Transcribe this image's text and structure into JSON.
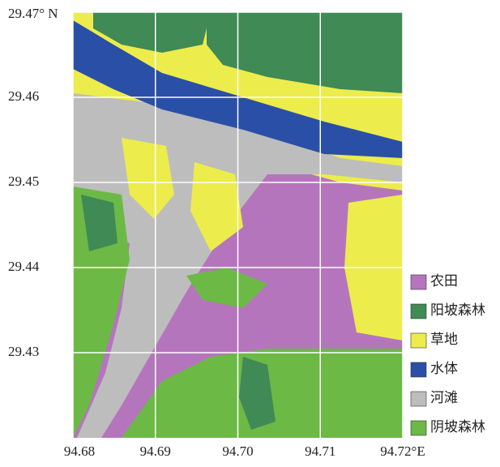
{
  "chart_data": {
    "type": "map",
    "xlim": [
      94.68,
      94.72
    ],
    "ylim": [
      29.42,
      29.47
    ],
    "xticks": [
      94.68,
      94.69,
      94.7,
      94.71,
      {
        "value": 94.72,
        "label": "94.72°E"
      }
    ],
    "yticks": [
      {
        "value": 29.47,
        "label": "29.47° N"
      },
      29.46,
      29.45,
      29.44,
      29.43
    ],
    "xtick_labels_fixed": [
      "94.68",
      "94.69",
      "94.70",
      "94.71"
    ],
    "grid": true,
    "legend": [
      {
        "label": "农田",
        "color": "#b575bd"
      },
      {
        "label": "阳坡森林",
        "color": "#3f8a55"
      },
      {
        "label": "草地",
        "color": "#ecec4c"
      },
      {
        "label": "水体",
        "color": "#2a4fa6"
      },
      {
        "label": "河滩",
        "color": "#bdbdbd"
      },
      {
        "label": "阴坡森林",
        "color": "#6cb946"
      }
    ]
  }
}
